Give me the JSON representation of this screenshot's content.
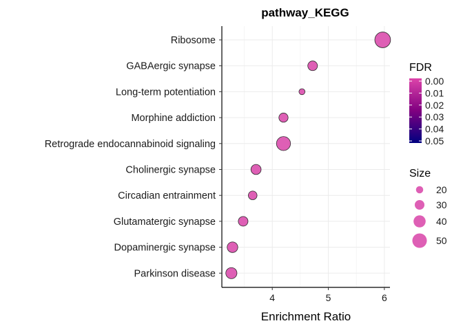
{
  "chart_data": {
    "type": "scatter",
    "title": "pathway_KEGG",
    "xlabel": "Enrichment Ratio",
    "ylabel": "",
    "xlim": [
      3.1,
      6.1
    ],
    "xticks": [
      "4",
      "5",
      "6"
    ],
    "grid": true,
    "categories": [
      "Ribosome",
      "GABAergic synapse",
      "Long-term potentiation",
      "Morphine addiction",
      "Retrograde endocannabinoid signaling",
      "Cholinergic synapse",
      "Circadian entrainment",
      "Glutamatergic synapse",
      "Dopaminergic synapse",
      "Parkinson disease"
    ],
    "x": [
      5.97,
      4.72,
      4.53,
      4.2,
      4.2,
      3.71,
      3.65,
      3.48,
      3.29,
      3.27
    ],
    "size": [
      55,
      30,
      15,
      28,
      48,
      32,
      26,
      30,
      34,
      36
    ],
    "fdr": [
      0.0,
      0.0,
      0.0,
      0.0,
      0.0,
      0.0,
      0.0,
      0.0,
      0.0,
      0.0
    ],
    "point_color": "#de5fb5",
    "legend": {
      "position": "right",
      "fdr_title": "FDR",
      "fdr_ticks": [
        "0.00",
        "0.01",
        "0.02",
        "0.03",
        "0.04",
        "0.05"
      ],
      "fdr_colors": [
        "#dd44aa",
        "#800080",
        "#000080"
      ],
      "size_title": "Size",
      "size_items": [
        "20",
        "30",
        "40",
        "50"
      ]
    }
  }
}
